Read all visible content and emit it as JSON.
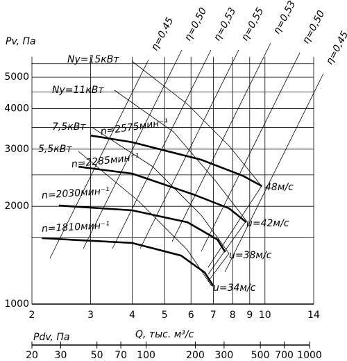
{
  "chart_data": {
    "type": "line",
    "y_label": "Pv, Па",
    "x_label": "Q, тыс. м³/с",
    "x2_label": "Pdv, Па",
    "log_x": true,
    "log_y": true,
    "grid": true,
    "xlim": [
      2,
      14
    ],
    "xticks": [
      2,
      3,
      4,
      5,
      6,
      7,
      8,
      9,
      10,
      14
    ],
    "ylim": [
      1000,
      5770
    ],
    "yticks": [
      1000,
      2000,
      3000,
      4000,
      5000
    ],
    "ygrid": [
      1600,
      2500,
      3500,
      4500,
      5500
    ],
    "x2lim": [
      20,
      1000
    ],
    "x2ticks": [
      20,
      30,
      50,
      70,
      100,
      200,
      300,
      500,
      700,
      1000
    ],
    "series": [
      {
        "name": "n=2575мин⁻¹",
        "color": "#000000",
        "x": [
          3.0,
          4.0,
          6.44,
          8.57,
          9.79
        ],
        "values": [
          3305,
          3150,
          2783,
          2486,
          2308
        ]
      },
      {
        "name": "n=2285мин⁻¹",
        "color": "#000000",
        "x": [
          2.76,
          4.0,
          6.1,
          7.8,
          8.8
        ],
        "values": [
          2649,
          2522,
          2176,
          1972,
          1786
        ]
      },
      {
        "name": "n=2030мин⁻¹",
        "color": "#000000",
        "x": [
          2.41,
          4.0,
          5.86,
          7.2,
          7.6
        ],
        "values": [
          2011,
          1944,
          1786,
          1580,
          1446
        ]
      },
      {
        "name": "n=1810мин⁻¹",
        "color": "#000000",
        "x": [
          2.14,
          4.0,
          5.6,
          6.6,
          7.0
        ],
        "values": [
          1596,
          1542,
          1411,
          1250,
          1137
        ]
      }
    ],
    "speed_labels": [
      "48м/с",
      "u=42м/с",
      "u=38м/с",
      "u=34м/с"
    ],
    "power_labels": [
      "Ny=15кВт",
      "Ny=11кВт",
      "7,5кВт",
      "5,5кВт"
    ],
    "efficiency_labels": [
      "η=0,45",
      "η=0,50",
      "η=0,53",
      "η=0,55",
      "η=0,53",
      "η=0,50",
      "η=0,45"
    ]
  }
}
